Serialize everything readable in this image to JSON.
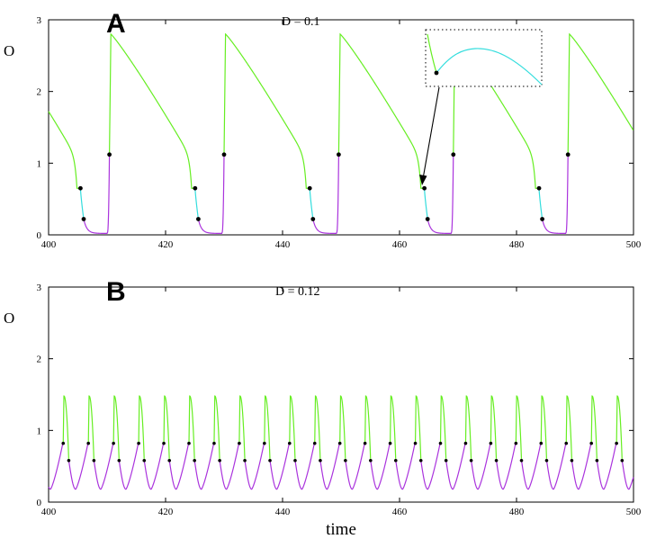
{
  "chart_data": [
    {
      "type": "line",
      "panel_label": "A",
      "title": "D = 0.1",
      "xlabel": "",
      "ylabel": "O",
      "xlim": [
        400,
        500
      ],
      "ylim": [
        0,
        3
      ],
      "x_ticks": [
        "400",
        "420",
        "440",
        "460",
        "480",
        "500"
      ],
      "y_ticks": [
        "0",
        "1",
        "2",
        "3"
      ],
      "period": 19.6,
      "spike_times": [
        410.4,
        430.0,
        449.6,
        469.2,
        488.8
      ],
      "peak_value": 2.8,
      "marker_points": {
        "upper_transition": 0.65,
        "lower_transition": 0.22,
        "rise_transition": 1.12
      },
      "colors": {
        "decay": "#66ee22",
        "transition": "#33dddd",
        "recovery": "#aa33dd",
        "marker": "#000000"
      },
      "inset": {
        "shows": "zoom of transition region near t = 464",
        "arrow_to": [
          464.0,
          0.65
        ]
      }
    },
    {
      "type": "line",
      "panel_label": "B",
      "title": "D = 0.12",
      "xlabel": "time",
      "ylabel": "O",
      "xlim": [
        400,
        500
      ],
      "ylim": [
        0,
        3
      ],
      "x_ticks": [
        "400",
        "420",
        "440",
        "460",
        "480",
        "500"
      ],
      "y_ticks": [
        "0",
        "1",
        "2",
        "3"
      ],
      "period": 4.3,
      "first_spike": 402.5,
      "peak_value": 1.48,
      "trough_value": 0.18,
      "marker_points": {
        "upper": 0.82,
        "lower": 0.58
      },
      "colors": {
        "upper": "#66ee22",
        "lower": "#aa33dd",
        "marker": "#000000"
      }
    }
  ]
}
